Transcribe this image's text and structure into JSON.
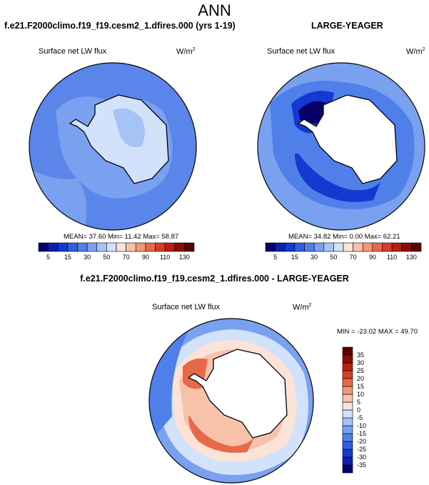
{
  "page": {
    "title": "ANN"
  },
  "panels": [
    {
      "title": "f.e21.F2000climo.f19_f19.cesm2_1.dfires.000 (yrs 1-19)",
      "variable": "Surface net LW flux",
      "units_base": "W/m",
      "units_exp": "2",
      "stats": "MEAN=  37.60  Min=  11.42  Max=  58.87"
    },
    {
      "title": "LARGE-YEAGER",
      "variable": "Surface net LW flux",
      "units_base": "W/m",
      "units_exp": "2",
      "stats": "MEAN=  34.82  Min=   0.00  Max=  62.21"
    },
    {
      "title": "f.e21.F2000climo.f19_f19.cesm2_1.dfires.000 - LARGE-YEAGER",
      "variable": "Surface net LW flux",
      "units_base": "W/m",
      "units_exp": "2",
      "stats": "MIN = -23.02 MAX =  49.70"
    }
  ],
  "chart_data": [
    {
      "type": "heatmap",
      "title": "f.e21.F2000climo.f19_f19.cesm2_1.dfires.000 (yrs 1-19)",
      "projection": "polar stereographic (south pole)",
      "variable": "Surface net LW flux",
      "units": "W/m2",
      "stats": {
        "mean": 37.6,
        "min": 11.42,
        "max": 58.87
      },
      "colorbar_levels": [
        5,
        10,
        15,
        20,
        30,
        40,
        50,
        60,
        70,
        80,
        90,
        100,
        110,
        120,
        130
      ],
      "colorbar_tick_labels": [
        "5",
        "15",
        "30",
        "50",
        "70",
        "90",
        "110",
        "130"
      ],
      "colorbar_colors": [
        "#08006a",
        "#0c21a8",
        "#1439d2",
        "#2e5ee2",
        "#4f7fe8",
        "#7aa1f0",
        "#a6c3f6",
        "#d2e2fb",
        "#fbe3d7",
        "#f8c2aa",
        "#f2987a",
        "#e66a4a",
        "#d44027",
        "#b81e12",
        "#8c0a06",
        "#5c0000"
      ]
    },
    {
      "type": "heatmap",
      "title": "LARGE-YEAGER",
      "projection": "polar stereographic (south pole)",
      "variable": "Surface net LW flux",
      "units": "W/m2",
      "stats": {
        "mean": 34.82,
        "min": 0.0,
        "max": 62.21
      },
      "colorbar_levels": [
        5,
        10,
        15,
        20,
        30,
        40,
        50,
        60,
        70,
        80,
        90,
        100,
        110,
        120,
        130
      ],
      "colorbar_tick_labels": [
        "5",
        "15",
        "30",
        "50",
        "70",
        "90",
        "110",
        "130"
      ],
      "colorbar_colors": [
        "#08006a",
        "#0c21a8",
        "#1439d2",
        "#2e5ee2",
        "#4f7fe8",
        "#7aa1f0",
        "#a6c3f6",
        "#d2e2fb",
        "#fbe3d7",
        "#f8c2aa",
        "#f2987a",
        "#e66a4a",
        "#d44027",
        "#b81e12",
        "#8c0a06",
        "#5c0000"
      ]
    },
    {
      "type": "heatmap",
      "title": "f.e21.F2000climo.f19_f19.cesm2_1.dfires.000 - LARGE-YEAGER",
      "projection": "polar stereographic (south pole)",
      "variable": "Surface net LW flux",
      "units": "W/m2",
      "stats": {
        "min": -23.02,
        "max": 49.7
      },
      "colorbar_levels": [
        -35,
        -30,
        -25,
        -20,
        -15,
        -10,
        -5,
        0,
        5,
        10,
        15,
        20,
        25,
        30,
        35
      ],
      "colorbar_tick_labels": [
        "-35",
        "-30",
        "-25",
        "-20",
        "-15",
        "-10",
        "-5",
        "0",
        "5",
        "10",
        "15",
        "20",
        "25",
        "30",
        "35"
      ],
      "colorbar_colors": [
        "#08006a",
        "#0c21a8",
        "#1439d2",
        "#2e5ee2",
        "#4f7fe8",
        "#7aa1f0",
        "#a6c3f6",
        "#d2e2fb",
        "#fbe3d7",
        "#f8c2aa",
        "#f2987a",
        "#e66a4a",
        "#d44027",
        "#b81e12",
        "#8c0a06",
        "#5c0000"
      ]
    }
  ]
}
